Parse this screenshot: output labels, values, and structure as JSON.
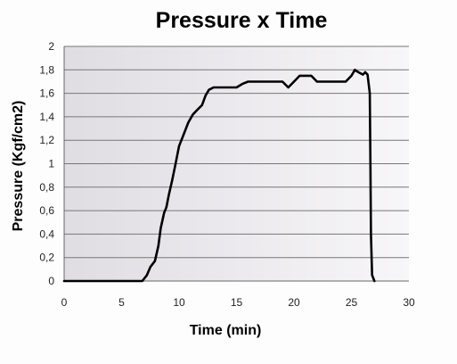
{
  "colors": {
    "plot_bg_left": "#e0dde2",
    "plot_bg_right": "#f7f6f8",
    "grid": "#777777",
    "line": "#000000",
    "axis": "#666666"
  },
  "chart_data": {
    "type": "line",
    "title": "Pressure x Time",
    "xlabel": "Time (min)",
    "ylabel": "Pressure (Kgf/cm2)",
    "xlim": [
      0,
      30
    ],
    "ylim": [
      0,
      2
    ],
    "xticks": [
      "0",
      "5",
      "10",
      "15",
      "20",
      "25",
      "30"
    ],
    "yticks": [
      "0",
      "0,2",
      "0,4",
      "0,6",
      "0,8",
      "1",
      "1,2",
      "1,4",
      "1,6",
      "1,8",
      "2"
    ],
    "grid": true,
    "legend": "none",
    "series": [
      {
        "x": [
          0,
          6.8,
          7.2,
          7.5,
          7.9,
          8.2,
          8.4,
          8.7,
          8.9,
          9.1,
          9.4,
          9.7,
          10.0,
          10.4,
          10.8,
          11.2,
          11.6,
          12.0,
          12.3,
          12.6,
          13.0,
          13.5,
          14.0,
          15.0,
          15.5,
          16.0,
          17.0,
          18.0,
          19.0,
          19.5,
          20.0,
          20.5,
          21.5,
          22.0,
          22.5,
          23.5,
          24.5,
          25.0,
          25.3,
          25.6,
          26.0,
          26.2,
          26.4,
          26.6,
          26.65,
          26.7,
          26.8,
          27.0
        ],
        "y": [
          0,
          0,
          0.05,
          0.12,
          0.17,
          0.3,
          0.45,
          0.58,
          0.63,
          0.73,
          0.86,
          1.0,
          1.15,
          1.25,
          1.35,
          1.42,
          1.46,
          1.5,
          1.58,
          1.63,
          1.65,
          1.65,
          1.65,
          1.65,
          1.68,
          1.7,
          1.7,
          1.7,
          1.7,
          1.65,
          1.7,
          1.75,
          1.75,
          1.7,
          1.7,
          1.7,
          1.7,
          1.75,
          1.8,
          1.78,
          1.76,
          1.78,
          1.76,
          1.6,
          1.0,
          0.4,
          0.05,
          0
        ]
      }
    ]
  }
}
